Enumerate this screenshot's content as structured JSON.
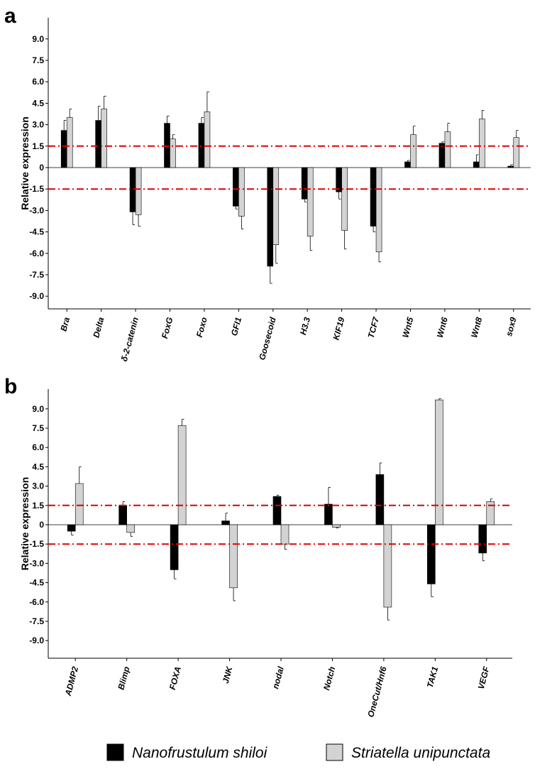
{
  "chart_data": [
    {
      "type": "bar",
      "panel_label": "a",
      "ylabel": "Relative expression",
      "ylim": [
        -10.5,
        10.5
      ],
      "yticks": [
        9.0,
        7.5,
        6.0,
        4.5,
        3.0,
        1.5,
        0,
        -1.5,
        -3.0,
        -4.5,
        -6.0,
        -7.5,
        -9.0
      ],
      "ytick_labels": [
        "9.0",
        "7.5",
        "6.0",
        "4.5",
        "3.0",
        "1.5",
        "0",
        "-1.5",
        "-3.0",
        "-4.5",
        "-6.0",
        "-7.5",
        "-9.0"
      ],
      "threshold_lines": [
        1.5,
        -1.5
      ],
      "categories": [
        "Bra",
        "Delta",
        "δ-2-catenin",
        "FoxG",
        "Foxo",
        "GFI1",
        "Goosecoid",
        "H3.3",
        "KIF19",
        "TCF7",
        "Wnt5",
        "Wnt6",
        "Wnt8",
        "sox9"
      ],
      "series": [
        {
          "name": "Nanofrustulum shiloi",
          "values": [
            2.6,
            3.3,
            -3.1,
            3.1,
            3.1,
            -2.7,
            -6.9,
            -2.2,
            -1.7,
            -4.1,
            0.4,
            1.7,
            0.4,
            0.1
          ],
          "errors": [
            0.7,
            1.0,
            0.9,
            0.5,
            0.4,
            0.2,
            1.2,
            0.2,
            0.5,
            0.4,
            0.1,
            0.1,
            0.5,
            0.1
          ]
        },
        {
          "name": "Striatella unipunctata",
          "values": [
            3.5,
            4.1,
            -3.3,
            2.0,
            3.9,
            -3.4,
            -5.4,
            -4.8,
            -4.4,
            -5.9,
            2.3,
            2.5,
            3.4,
            2.1
          ],
          "errors": [
            0.6,
            0.9,
            0.8,
            0.3,
            1.4,
            0.9,
            1.3,
            1.0,
            1.3,
            0.7,
            0.6,
            0.6,
            0.6,
            0.5
          ]
        }
      ]
    },
    {
      "type": "bar",
      "panel_label": "b",
      "ylabel": "Relative expression",
      "ylim": [
        -10.5,
        10.5
      ],
      "yticks": [
        9.0,
        7.5,
        6.0,
        4.5,
        3.0,
        1.5,
        0,
        -1.5,
        -3.0,
        -4.5,
        -6.0,
        -7.5,
        -9.0
      ],
      "ytick_labels": [
        "9.0",
        "7.5",
        "6.0",
        "4.5",
        "3.0",
        "1.5",
        "0",
        "-1.5",
        "-3.0",
        "-4.5",
        "-6.0",
        "-7.5",
        "-9.0"
      ],
      "threshold_lines": [
        1.5,
        -1.5
      ],
      "categories": [
        "ADMP2",
        "Blimp",
        "FOXA",
        "JNK",
        "nodal",
        "Notch",
        "OneCut/Hnf6",
        "TAK1",
        "VEGF"
      ],
      "series": [
        {
          "name": "Nanofrustulum shiloi",
          "values": [
            -0.5,
            1.5,
            -3.5,
            0.3,
            2.2,
            1.6,
            3.9,
            -4.6,
            -2.2
          ],
          "errors": [
            0.3,
            0.3,
            0.7,
            0.6,
            0.1,
            1.3,
            0.9,
            1.0,
            0.6
          ]
        },
        {
          "name": "Striatella unipunctata",
          "values": [
            3.2,
            -0.6,
            7.7,
            -4.9,
            -1.5,
            -0.2,
            -6.4,
            9.7,
            1.8
          ],
          "errors": [
            1.3,
            0.3,
            0.5,
            1.0,
            0.4,
            0.05,
            1.0,
            0.1,
            0.2
          ]
        }
      ]
    }
  ],
  "legend": {
    "items": [
      {
        "label": "Nanofrustulum shiloi",
        "color": "#000000"
      },
      {
        "label": "Striatella unipunctata",
        "color": "#d3d3d3"
      }
    ]
  },
  "colors": {
    "series_dark": "#000000",
    "series_light": "#d3d3d3",
    "threshold": "#e00000"
  }
}
